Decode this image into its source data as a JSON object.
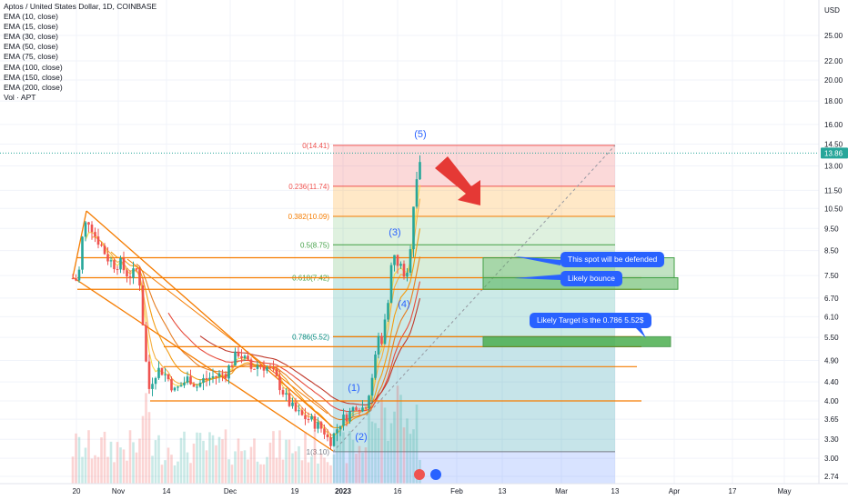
{
  "header": {
    "title": "Aptos / United States Dollar, 1D, COINBASE",
    "indicators": [
      "EMA (10, close)",
      "EMA (15, close)",
      "EMA (30, close)",
      "EMA (50, close)",
      "EMA (75, close)",
      "EMA (100, close)",
      "EMA (150, close)",
      "EMA (200, close)",
      "Vol · APT"
    ]
  },
  "price_axis": {
    "currency": "USD",
    "ticks": [
      "25.00",
      "22.00",
      "20.00",
      "18.00",
      "16.00",
      "14.50",
      "13.00",
      "11.50",
      "10.50",
      "9.50",
      "8.50",
      "7.50",
      "6.70",
      "6.10",
      "5.50",
      "4.90",
      "4.40",
      "4.00",
      "3.65",
      "3.30",
      "3.00",
      "2.74"
    ],
    "current_price": "13.86",
    "current_price_color": "#26a69a"
  },
  "time_axis": {
    "ticks": [
      "20",
      "Nov",
      "14",
      "Dec",
      "19",
      "2023",
      "16",
      "Feb",
      "13",
      "Mar",
      "13",
      "Apr",
      "17",
      "May"
    ]
  },
  "chart_data": {
    "type": "candlestick",
    "y_scale": "log",
    "fib_levels": [
      {
        "label": "0(14.41)",
        "ratio": 0,
        "price": 14.41,
        "color": "#ef5350"
      },
      {
        "label": "0.236(11.74)",
        "ratio": 0.236,
        "price": 11.74,
        "color": "#ef5350"
      },
      {
        "label": "0.382(10.09)",
        "ratio": 0.382,
        "price": 10.09,
        "color": "#f57c00"
      },
      {
        "label": "0.5(8.75)",
        "ratio": 0.5,
        "price": 8.75,
        "color": "#43a047"
      },
      {
        "label": "0.618(7.42)",
        "ratio": 0.618,
        "price": 7.42,
        "color": "#43a047"
      },
      {
        "label": "0.786(5.52)",
        "ratio": 0.786,
        "price": 5.52,
        "color": "#00897b"
      },
      {
        "label": "1(3.10)",
        "ratio": 1,
        "price": 3.1,
        "color": "#787b86"
      }
    ],
    "waves": [
      "(1)",
      "(2)",
      "(3)",
      "(4)",
      "(5)"
    ],
    "horizontal_levels": [
      8.2,
      7.42,
      7.0,
      5.52,
      5.25,
      4.75,
      4.0
    ],
    "annotations": [
      "This spot will be defended",
      "Likely bounce",
      "Likely Target is the 0.786 5.52$"
    ],
    "colors": {
      "up": "#26a69a",
      "down": "#ef5350",
      "trendline": "#f57c00",
      "fib_box": "#2962ff"
    }
  }
}
